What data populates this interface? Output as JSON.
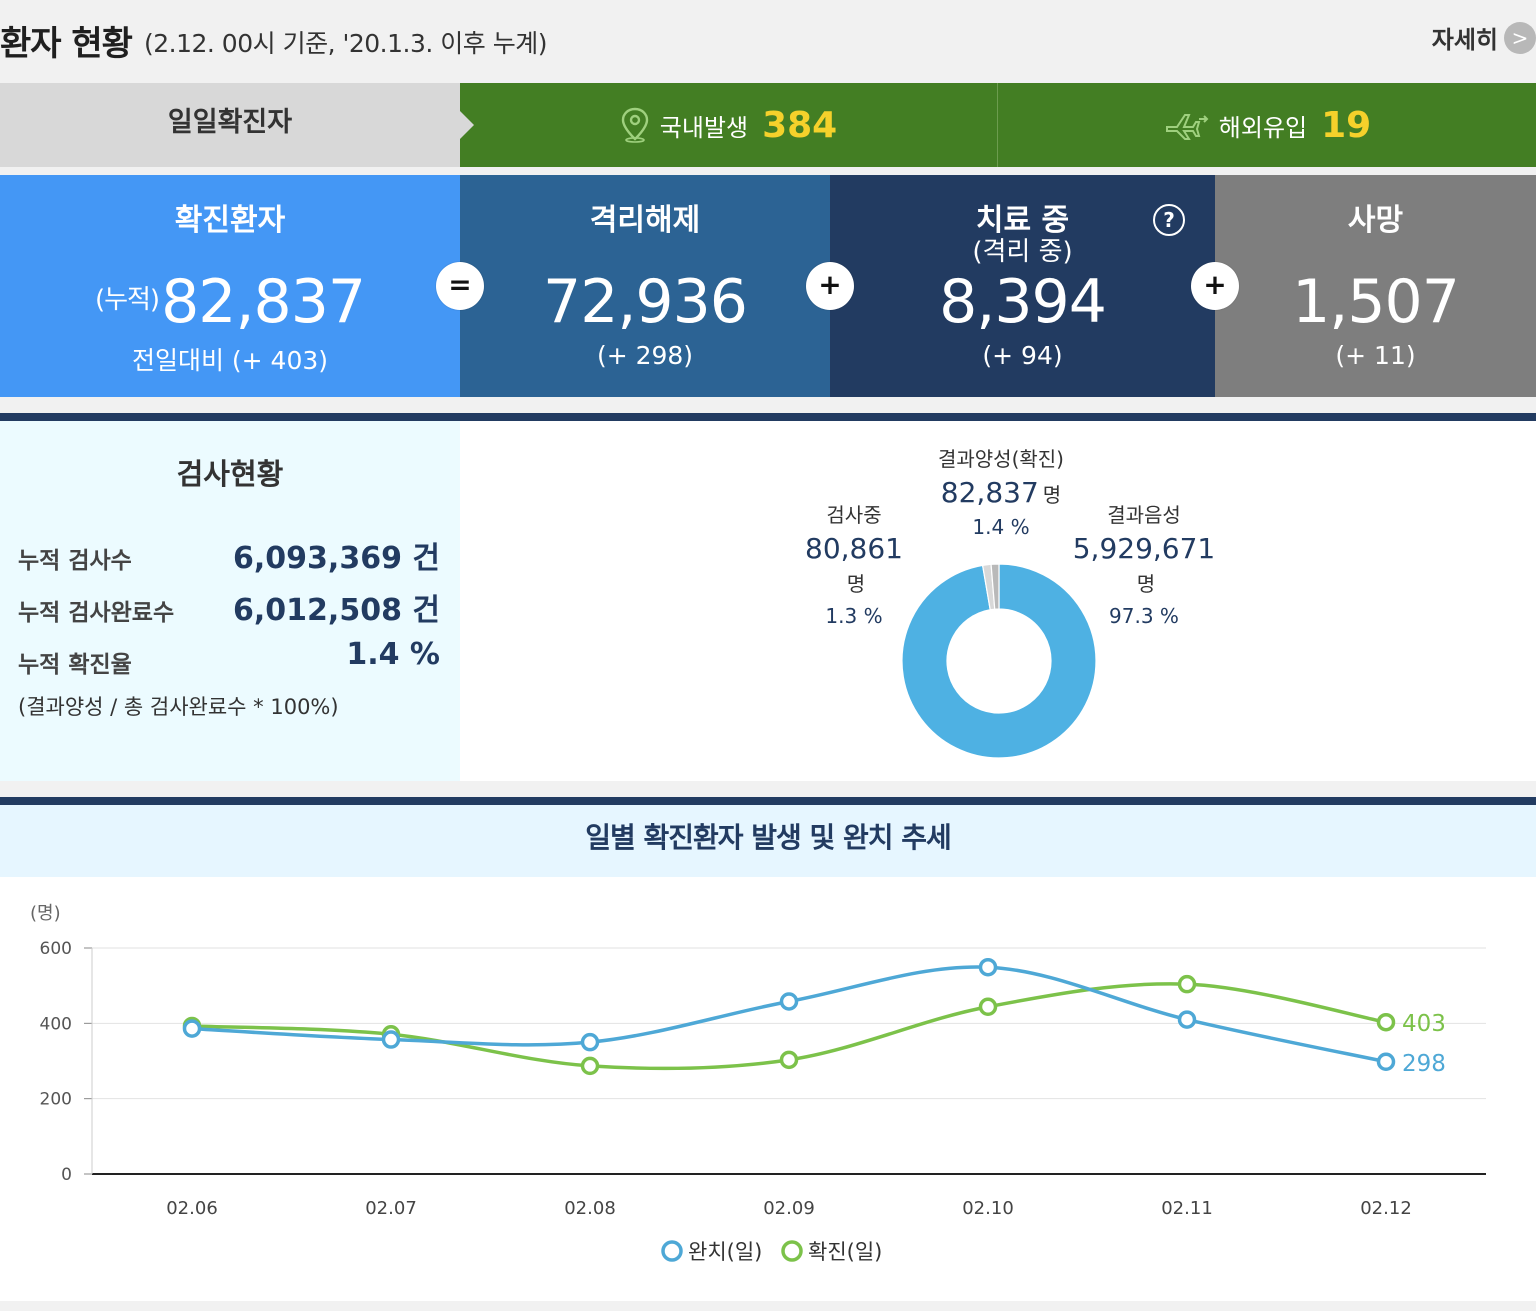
{
  "header": {
    "title": "환자 현황",
    "subtitle": "(2.12. 00시 기준, '20.1.3. 이후 누계)",
    "detail_label": "자세히",
    "detail_arrow": ">"
  },
  "daily": {
    "label": "일일확진자",
    "domestic_label": "국내발생",
    "domestic_value": "384",
    "overseas_label": "해외유입",
    "overseas_value": "19"
  },
  "stats": {
    "confirmed": {
      "title": "확진환자",
      "prefix": "(누적)",
      "value": "82,837",
      "change": "전일대비 (+ 403)"
    },
    "released": {
      "title": "격리해제",
      "value": "72,936",
      "change": "(+ 298)"
    },
    "treating": {
      "title": "치료 중",
      "subtitle": "(격리 중)",
      "value": "8,394",
      "change": "(+ 94)"
    },
    "deaths": {
      "title": "사망",
      "value": "1,507",
      "change": "(+ 11)"
    },
    "op_equals": "=",
    "op_plus": "+",
    "help": "?"
  },
  "colors": {
    "confirmed_bg": "#4497f5",
    "released_bg": "#2c6394",
    "treating_bg": "#223b61",
    "deaths_bg": "#7e7e7e",
    "green": "#437e23",
    "yellow": "#f5d12b",
    "line_recovered": "#4ea8d6",
    "line_confirmed": "#7cc24a",
    "donut": "#4eb1e3"
  },
  "tests": {
    "title": "검사현황",
    "rows": [
      {
        "label": "누적 검사수",
        "value": "6,093,369 건"
      },
      {
        "label": "누적 검사완료수",
        "value": "6,012,508 건"
      },
      {
        "label": "누적 확진율",
        "value": "1.4 %"
      }
    ],
    "note": "(결과양성 / 총 검사완료수 * 100%)",
    "pie": {
      "unit": "명",
      "slices": [
        {
          "name": "결과음성",
          "value": "5,929,671",
          "percent": "97.3 %",
          "share": 97.3
        },
        {
          "name": "결과양성(확진)",
          "value": "82,837",
          "percent": "1.4 %",
          "share": 1.4
        },
        {
          "name": "검사중",
          "value": "80,861",
          "percent": "1.3 %",
          "share": 1.3
        }
      ]
    }
  },
  "chart_section": {
    "title": "일별 확진환자 발생 및 완치 추세"
  },
  "chart_data": {
    "type": "line",
    "ylabel": "(명)",
    "ylim": [
      0,
      600
    ],
    "yticks": [
      0,
      200,
      400,
      600
    ],
    "categories": [
      "02.06",
      "02.07",
      "02.08",
      "02.09",
      "02.10",
      "02.11",
      "02.12"
    ],
    "series": [
      {
        "name": "완치(일)",
        "values": [
          386,
          357,
          350,
          458,
          549,
          410,
          298
        ],
        "color": "#4ea8d6"
      },
      {
        "name": "확진(일)",
        "values": [
          393,
          371,
          287,
          303,
          444,
          504,
          403
        ],
        "color": "#7cc24a"
      }
    ],
    "end_labels": [
      "298",
      "403"
    ],
    "grid": true,
    "legend": "bottom"
  }
}
